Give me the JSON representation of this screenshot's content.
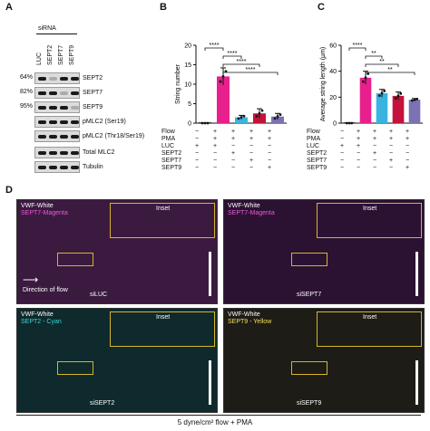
{
  "panels": {
    "A": "A",
    "B": "B",
    "C": "C",
    "D": "D"
  },
  "panelA": {
    "sirna_label": "siRNA",
    "lanes": [
      "LUC",
      "SEPT2",
      "SEPT7",
      "SEPT9"
    ],
    "rows": [
      {
        "pct": "64%",
        "label": "SEPT2"
      },
      {
        "pct": "82%",
        "label": "SEPT7"
      },
      {
        "pct": "95%",
        "label": "SEPT9"
      },
      {
        "pct": "",
        "label": "pMLC2 (Ser19)"
      },
      {
        "pct": "",
        "label": "pMLC2 (Thr18/Ser19)"
      },
      {
        "pct": "",
        "label": "Total MLC2"
      },
      {
        "pct": "",
        "label": "Tubulin"
      }
    ]
  },
  "panelB": {
    "chart_data": {
      "type": "bar",
      "ylabel": "String number",
      "ylim": [
        0,
        20
      ],
      "yticks": [
        "0",
        "5",
        "10",
        "15",
        "20"
      ],
      "categories": [
        "Flow−",
        "LUC",
        "SEPT2",
        "SEPT7",
        "SEPT9"
      ],
      "values": [
        0,
        12,
        1.5,
        2.5,
        1.7
      ],
      "errors": [
        0,
        2.2,
        0.5,
        1.2,
        0.8
      ],
      "colors": [
        "#333333",
        "#e8208d",
        "#3ab3e0",
        "#c4123a",
        "#7a72b5"
      ],
      "significance": [
        {
          "from": 1,
          "to": 2,
          "label": "****"
        },
        {
          "from": 1,
          "to": 3,
          "label": "****"
        },
        {
          "from": 1,
          "to": 4,
          "label": "****"
        },
        {
          "from": 0,
          "to": 1,
          "label": "****"
        }
      ]
    }
  },
  "panelC": {
    "chart_data": {
      "type": "bar",
      "ylabel": "Average string length (µm)",
      "ylim": [
        0,
        60
      ],
      "yticks": [
        "0",
        "20",
        "40",
        "60"
      ],
      "categories": [
        "Flow−",
        "LUC",
        "SEPT2",
        "SEPT7",
        "SEPT9"
      ],
      "values": [
        0,
        35,
        23,
        21,
        18
      ],
      "errors": [
        0,
        5,
        3,
        3,
        1
      ],
      "colors": [
        "#333333",
        "#e8208d",
        "#3ab3e0",
        "#c4123a",
        "#7a72b5"
      ],
      "significance": [
        {
          "from": 1,
          "to": 2,
          "label": "**"
        },
        {
          "from": 1,
          "to": 3,
          "label": "**"
        },
        {
          "from": 1,
          "to": 4,
          "label": "**"
        },
        {
          "from": 0,
          "to": 1,
          "label": "****"
        }
      ]
    }
  },
  "condition_table": {
    "row_labels": [
      "Flow",
      "PMA",
      "LUC",
      "SEPT2",
      "SEPT7",
      "SEPT9"
    ],
    "values": [
      [
        "−",
        "+",
        "+",
        "+",
        "+"
      ],
      [
        "−",
        "+",
        "+",
        "+",
        "+"
      ],
      [
        "+",
        "+",
        "−",
        "−",
        "−"
      ],
      [
        "−",
        "−",
        "+",
        "−",
        "−"
      ],
      [
        "−",
        "−",
        "−",
        "+",
        "−"
      ],
      [
        "−",
        "−",
        "−",
        "−",
        "+"
      ]
    ]
  },
  "panelD": {
    "images": [
      {
        "line1": "VWF-White",
        "line2": "SEPT7-Magenta",
        "line2_color": "#e85ad8",
        "cond": "siLUC",
        "inset": "Inset",
        "bg": "#3b1a3f",
        "speck": "#e8b0f0"
      },
      {
        "line1": "VWF-White",
        "line2": "SEPT7-Magenta",
        "line2_color": "#e85ad8",
        "cond": "siSEPT7",
        "inset": "Inset",
        "bg": "#2c1232",
        "speck": "#d99ae6"
      },
      {
        "line1": "VWF-White",
        "line2": "SEPT2 - Cyan",
        "line2_color": "#3ed6d6",
        "cond": "siSEPT2",
        "inset": "Inset",
        "bg": "#0f2a2c",
        "speck": "#a8eef0"
      },
      {
        "line1": "VWF-White",
        "line2": "SEPT9 - Yellow",
        "line2_color": "#f2e15a",
        "cond": "siLUC",
        "inset": "Inset",
        "bg": "#24231a",
        "speck": "#f6f1c0"
      },
      {
        "line1": "",
        "line2": "",
        "line2_color": "#fff",
        "cond": "siSEPT9",
        "inset": "Inset",
        "bg": "#1d1c16",
        "speck": "#ece6b4"
      }
    ],
    "direction_label": "Direction of flow",
    "caption": "5 dyne/cm² flow + PMA"
  }
}
